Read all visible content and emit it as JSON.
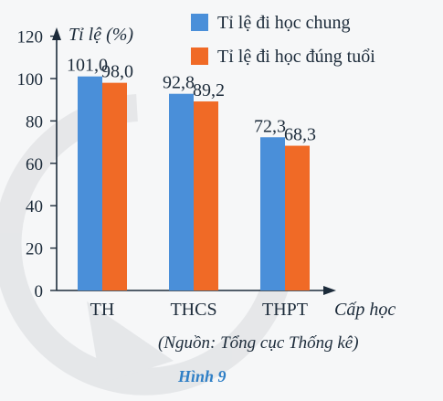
{
  "chart_data": {
    "type": "bar",
    "ylabel": "Tỉ lệ (%)",
    "xlabel": "Cấp học",
    "ylim": [
      0,
      120
    ],
    "yticks": [
      "0",
      "20",
      "40",
      "60",
      "80",
      "100",
      "120"
    ],
    "categories": [
      "TH",
      "THCS",
      "THPT"
    ],
    "series": [
      {
        "name": "Tỉ lệ đi học chung",
        "color": "#4a8fd9",
        "values": [
          101.0,
          92.8,
          72.3
        ],
        "labels": [
          "101,0",
          "92,8",
          "72,3"
        ]
      },
      {
        "name": "Tỉ lệ đi học đúng tuổi",
        "color": "#f06a26",
        "values": [
          98.0,
          89.2,
          68.3
        ],
        "labels": [
          "98,0",
          "89,2",
          "68,3"
        ]
      }
    ],
    "legend_position": "top-right",
    "grid": false
  },
  "source_note": "(Nguồn: Tổng cục Thống kê)",
  "caption": "Hình 9"
}
